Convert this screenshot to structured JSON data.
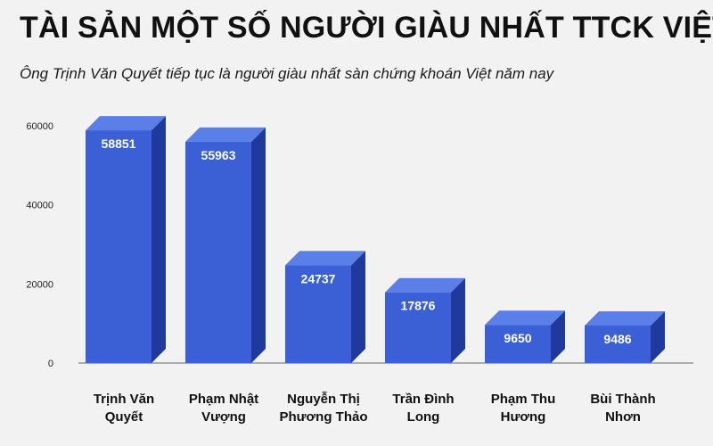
{
  "title": "TÀI SẢN MỘT SỐ NGƯỜI GIÀU NHẤT TTCK VIỆT",
  "subtitle": "Ông Trịnh Văn Quyết tiếp tục là người giàu nhất sàn chứng khoán Việt năm nay",
  "colors": {
    "bar_front": "#3b5fd4",
    "bar_top": "#5b7fe8",
    "bar_side": "#1f3a9a",
    "background": "#f2f2f2"
  },
  "chart_data": {
    "type": "bar",
    "categories": [
      [
        "Trịnh Văn",
        "Quyết"
      ],
      [
        "Phạm Nhật",
        "Vượng"
      ],
      [
        "Nguyễn Thị",
        "Phương Thảo"
      ],
      [
        "Trần Đình",
        "Long"
      ],
      [
        "Phạm Thu",
        "Hương"
      ],
      [
        "Bùi Thành",
        "Nhơn"
      ]
    ],
    "values": [
      58851,
      55963,
      24737,
      17876,
      9650,
      9486
    ],
    "data_labels": [
      "58851",
      "55963",
      "24737",
      "17876",
      "9650",
      "9486"
    ],
    "yticks": [
      "0",
      "20000",
      "40000",
      "60000"
    ],
    "ylim": [
      0,
      60000
    ],
    "grid": false,
    "legend": "none",
    "style": "3d"
  }
}
